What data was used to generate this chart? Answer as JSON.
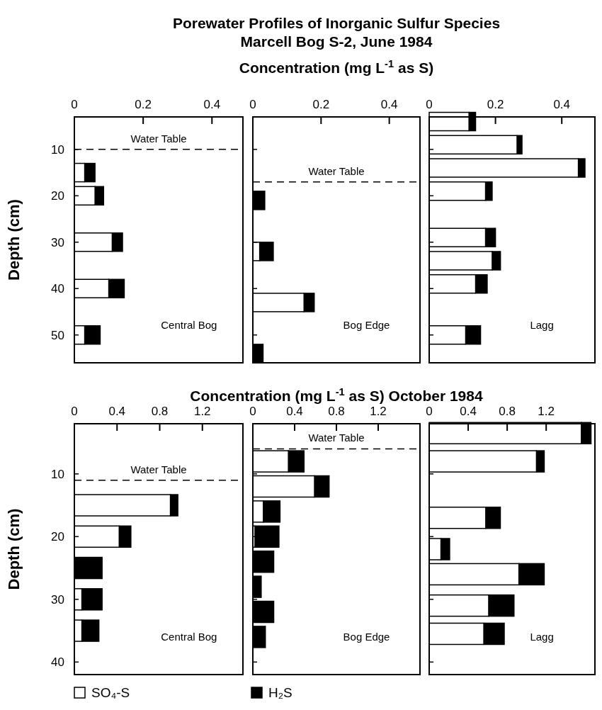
{
  "chart_data": [
    {
      "type": "bar",
      "orientation": "horizontal",
      "stacked": true,
      "ylabel": "Depth (cm)",
      "x": [
        15,
        20,
        30,
        40,
        50
      ],
      "series": [
        {
          "color": "#ffffff",
          "values": [
            0.03,
            0.06,
            0.11,
            0.1,
            0.03
          ]
        },
        {
          "color": "#000000",
          "values": [
            0.03,
            0.025,
            0.03,
            0.045,
            0.045
          ]
        }
      ],
      "xlim": [
        0,
        0.49
      ],
      "xticks": [
        0,
        0.2,
        0.4
      ],
      "ylim": [
        56,
        3
      ],
      "yticks": [
        10,
        20,
        30,
        40,
        50
      ],
      "ref_lines": [
        {
          "axis": "y",
          "value": 10,
          "label": "Water Table",
          "line_style": "dashed"
        }
      ],
      "annotations": [
        "Central Bog"
      ]
    },
    {
      "type": "bar",
      "orientation": "horizontal",
      "stacked": true,
      "title": "Porewater Profiles of Inorganic Sulfur Species",
      "subtitle": "Marcell Bog S-2, June 1984",
      "xlabel": "Concentration (mg L$^{-1}$ as S)",
      "x": [
        21,
        32,
        43,
        54
      ],
      "series": [
        {
          "color": "#ffffff",
          "values": [
            null,
            0.02,
            0.15,
            null
          ]
        },
        {
          "color": "#000000",
          "values": [
            0.035,
            0.04,
            0.03,
            0.03
          ]
        }
      ],
      "xlim": [
        0,
        0.49
      ],
      "xticks": [
        0,
        0.2,
        0.4
      ],
      "ylim": [
        56,
        3
      ],
      "yticks": [
        10,
        20,
        30,
        40,
        50
      ],
      "tick_labels": "x",
      "ref_lines": [
        {
          "axis": "y",
          "value": 17,
          "label": "Water Table",
          "line_style": "dashed"
        }
      ],
      "annotations": [
        "Bog Edge"
      ]
    },
    {
      "type": "bar",
      "orientation": "horizontal",
      "stacked": true,
      "x": [
        4,
        9,
        14,
        19,
        29,
        34,
        39,
        50
      ],
      "series": [
        {
          "color": "#ffffff",
          "values": [
            0.12,
            0.265,
            0.45,
            0.17,
            0.17,
            0.19,
            0.14,
            0.11
          ]
        },
        {
          "color": "#000000",
          "values": [
            0.02,
            0.015,
            0.02,
            0.02,
            0.03,
            0.025,
            0.035,
            0.045
          ]
        }
      ],
      "xlim": [
        0,
        0.5
      ],
      "xticks": [
        0,
        0.2,
        0.4
      ],
      "ylim": [
        56,
        3
      ],
      "yticks": [
        10,
        20,
        30,
        40,
        50
      ],
      "tick_labels": "x",
      "annotations": [
        "Lagg"
      ]
    },
    {
      "type": "bar",
      "orientation": "horizontal",
      "stacked": true,
      "ylabel": "Depth (cm)",
      "legend": "bottom",
      "x": [
        15,
        20,
        25,
        30,
        35
      ],
      "series": [
        {
          "name": "SO₄-S",
          "color": "#ffffff",
          "values": [
            0.9,
            0.42,
            null,
            0.07,
            0.07
          ]
        },
        {
          "name": "H₂S",
          "color": "#000000",
          "values": [
            0.07,
            0.11,
            0.26,
            0.19,
            0.16
          ]
        }
      ],
      "xlim": [
        0,
        1.58
      ],
      "xticks": [
        0,
        0.4,
        0.8,
        1.2
      ],
      "ylim": [
        42,
        2
      ],
      "yticks": [
        10,
        20,
        30,
        40
      ],
      "ref_lines": [
        {
          "axis": "y",
          "value": 11,
          "label": "Water Table",
          "line_style": "dashed"
        }
      ],
      "annotations": [
        "Central Bog"
      ]
    },
    {
      "type": "bar",
      "orientation": "horizontal",
      "stacked": true,
      "xlabel": "Concentration (mg L$^{-1}$ as S) October 1984",
      "x": [
        8,
        12,
        16,
        20,
        24,
        28,
        32,
        36
      ],
      "series": [
        {
          "color": "#ffffff",
          "values": [
            0.34,
            0.59,
            0.1,
            0.02,
            null,
            null,
            null,
            null
          ]
        },
        {
          "color": "#000000",
          "values": [
            0.15,
            0.14,
            0.16,
            0.23,
            0.2,
            0.08,
            0.2,
            0.12
          ]
        }
      ],
      "xlim": [
        0,
        1.6
      ],
      "xticks": [
        0,
        0.4,
        0.8,
        1.2
      ],
      "ylim": [
        42,
        2
      ],
      "yticks": [
        10,
        20,
        30,
        40
      ],
      "tick_labels": "x",
      "ref_lines": [
        {
          "axis": "y",
          "value": 6,
          "label": "Water Table",
          "line_style": "dashed"
        }
      ],
      "annotations": [
        "Bog Edge"
      ]
    },
    {
      "type": "bar",
      "orientation": "horizontal",
      "stacked": true,
      "x": [
        3.5,
        8,
        17,
        22,
        26,
        31,
        35.5
      ],
      "series": [
        {
          "color": "#ffffff",
          "values": [
            1.56,
            1.1,
            0.58,
            0.12,
            0.92,
            0.61,
            0.56
          ]
        },
        {
          "color": "#000000",
          "values": [
            0.1,
            0.08,
            0.15,
            0.09,
            0.26,
            0.26,
            0.21
          ]
        }
      ],
      "xlim": [
        0,
        1.7
      ],
      "xticks": [
        0,
        0.4,
        0.8,
        1.2
      ],
      "ylim": [
        42,
        2
      ],
      "yticks": [
        10,
        20,
        30,
        40
      ],
      "tick_labels": "x",
      "annotations": [
        "Lagg"
      ]
    }
  ]
}
